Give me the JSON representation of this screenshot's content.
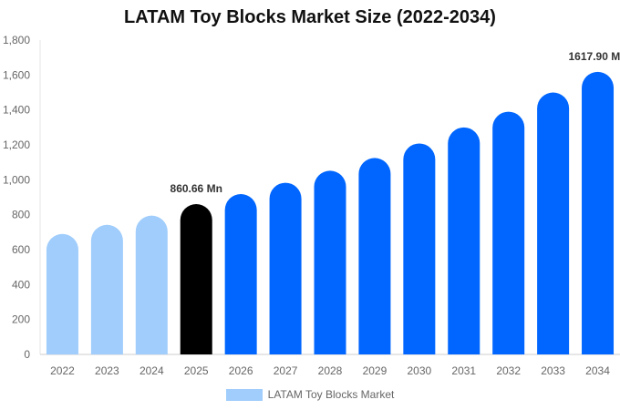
{
  "chart_data": {
    "type": "bar",
    "title": "LATAM Toy Blocks Market Size (2022-2034)",
    "categories": [
      "2022",
      "2023",
      "2024",
      "2025",
      "2026",
      "2027",
      "2028",
      "2029",
      "2030",
      "2031",
      "2032",
      "2033",
      "2034"
    ],
    "series": [
      {
        "name": "LATAM Toy Blocks Market",
        "values": [
          690,
          742,
          795,
          860.66,
          918,
          983,
          1052,
          1125,
          1208,
          1300,
          1390,
          1500,
          1617.9
        ]
      }
    ],
    "ylim": [
      0,
      1800
    ],
    "yticks": [
      0,
      200,
      400,
      600,
      800,
      1000,
      1200,
      1400,
      1600,
      1800
    ],
    "ytick_labels": [
      "0",
      "200",
      "400",
      "600",
      "800",
      "1,000",
      "1,200",
      "1,400",
      "1,600",
      "1,800"
    ],
    "data_labels": [
      {
        "category": "2025",
        "text": "860.66 Mn"
      },
      {
        "category": "2034",
        "text": "1617.90 Mn"
      }
    ],
    "bar_colors": {
      "historical": "#a0cdfc",
      "current": "#000000",
      "forecast": "#0066ff"
    },
    "historical_categories": [
      "2022",
      "2023",
      "2024"
    ],
    "current_category": "2025",
    "grid": false,
    "legend_position": "bottom-center"
  }
}
